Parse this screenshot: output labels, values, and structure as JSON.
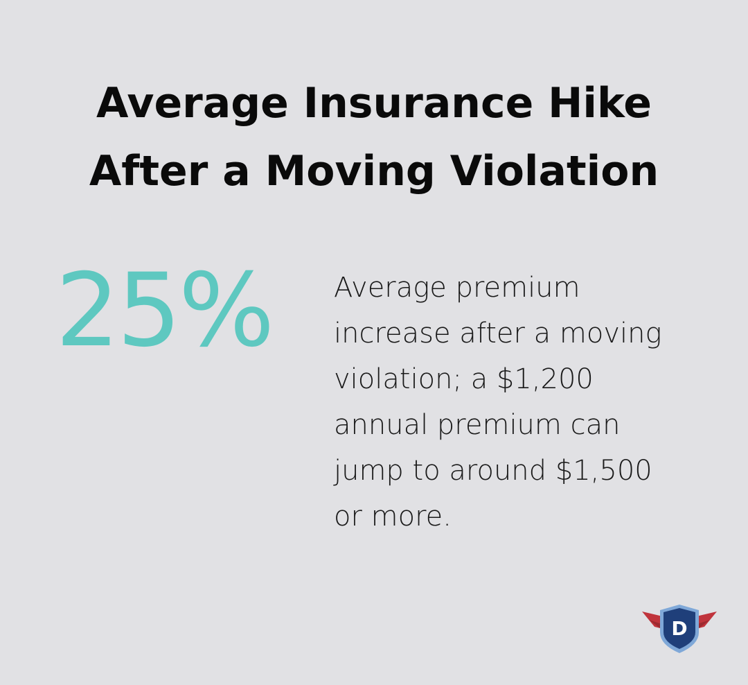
{
  "header": {
    "title_lines": [
      "Average Insurance Hike",
      "After a Moving Violation"
    ]
  },
  "stat": {
    "value": "25%",
    "description_lines": [
      "Average premium",
      "increase after a moving",
      "violation; a $1,200",
      "annual premium can",
      "jump to around $1,500",
      "or more."
    ]
  },
  "logo": {
    "letter": "D"
  }
}
